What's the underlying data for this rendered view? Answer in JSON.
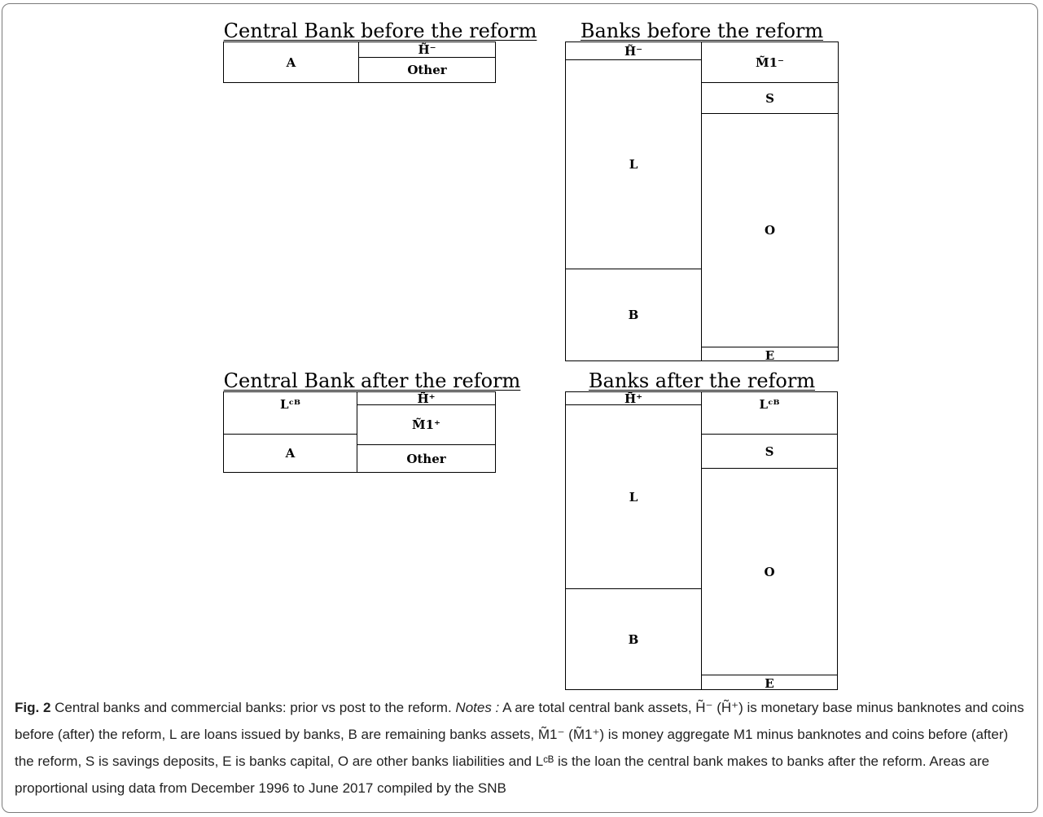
{
  "cb_before": {
    "title": "Central Bank before the reform",
    "assets": [
      {
        "label": "A"
      }
    ],
    "liabilities": [
      {
        "label": "H̃⁻"
      },
      {
        "label": "Other"
      }
    ]
  },
  "banks_before": {
    "title": "Banks before the reform",
    "assets": [
      {
        "label": "H̃⁻"
      },
      {
        "label": "L"
      },
      {
        "label": "B"
      }
    ],
    "liabilities": [
      {
        "label": "M̃1⁻"
      },
      {
        "label": "S"
      },
      {
        "label": "O"
      },
      {
        "label": "E"
      }
    ]
  },
  "cb_after": {
    "title": "Central Bank after the reform",
    "assets": [
      {
        "label": "Lᶜᴮ"
      },
      {
        "label": "A"
      }
    ],
    "liabilities": [
      {
        "label": "H̃⁺"
      },
      {
        "label": "M̃1⁺"
      },
      {
        "label": "Other"
      }
    ]
  },
  "banks_after": {
    "title": "Banks after the reform",
    "assets": [
      {
        "label": "H̃⁺"
      },
      {
        "label": "L"
      },
      {
        "label": "B"
      }
    ],
    "liabilities": [
      {
        "label": "Lᶜᴮ"
      },
      {
        "label": "S"
      },
      {
        "label": "O"
      },
      {
        "label": "E"
      }
    ]
  },
  "caption": {
    "fig_label": "Fig. 2",
    "title": "Central banks and commercial banks: prior vs post to the reform.",
    "notes_label": "Notes :",
    "text": "A are total central bank assets, H̃⁻ (H̃⁺) is monetary base minus banknotes and coins before (after) the reform, L are loans issued by banks, B are remaining banks assets, M̃1⁻ (M̃1⁺) is money aggregate M1 minus banknotes and coins before (after) the reform, S is savings deposits, E is banks capital, O are other banks liabilities and Lᶜᴮ is the loan the central bank makes to banks after the reform. Areas are proportional using data from December 1996 to June 2017 compiled by the SNB"
  }
}
